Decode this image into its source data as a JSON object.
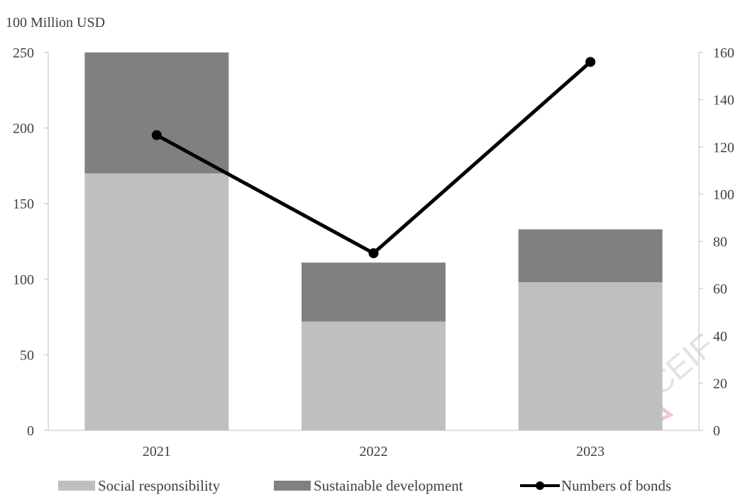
{
  "chart_data": {
    "type": "bar",
    "stacked": true,
    "y_unit_label": "100 Million USD",
    "categories": [
      "2021",
      "2022",
      "2023"
    ],
    "series": [
      {
        "name": "Social responsibility",
        "type": "bar",
        "axis": "left",
        "color": "#bfbfbf",
        "values": [
          170,
          72,
          98
        ]
      },
      {
        "name": "Sustainable development",
        "type": "bar",
        "axis": "left",
        "color": "#808080",
        "values": [
          80,
          39,
          35
        ]
      },
      {
        "name": "Numbers of bonds",
        "type": "line",
        "axis": "right",
        "color": "#000000",
        "values": [
          125,
          75,
          156
        ]
      }
    ],
    "y_left": {
      "min": 0,
      "max": 250,
      "ticks": [
        0,
        50,
        100,
        150,
        200,
        250
      ]
    },
    "y_right": {
      "min": 0,
      "max": 160,
      "ticks": [
        0,
        20,
        40,
        60,
        80,
        100,
        120,
        140,
        160
      ]
    },
    "grid": false,
    "legend": "bottom"
  }
}
